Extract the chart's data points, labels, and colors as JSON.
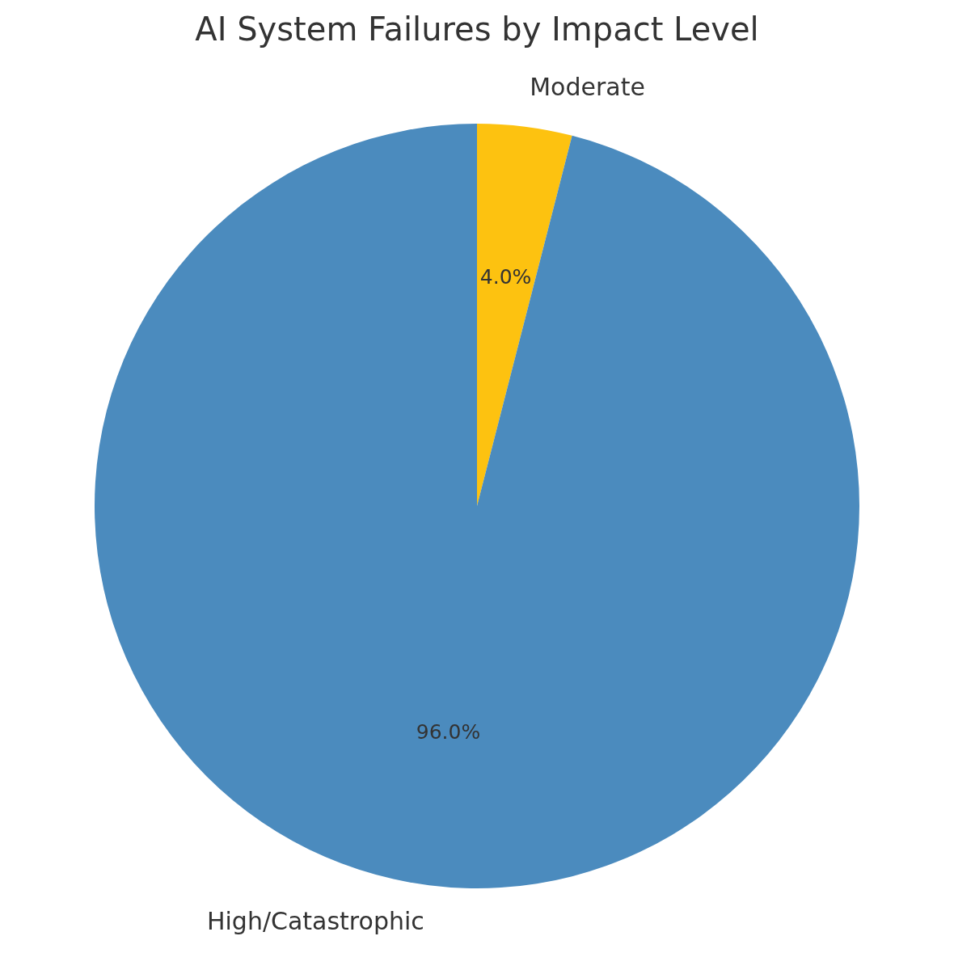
{
  "chart_data": {
    "type": "pie",
    "title": "AI System Failures by Impact Level",
    "categories": [
      "Moderate",
      "High/Catastrophic"
    ],
    "values": [
      4,
      96
    ],
    "colors": [
      "#fdc210",
      "#4b8bbe"
    ],
    "value_labels": [
      "4.0%",
      "96.0%"
    ],
    "legend": false
  }
}
